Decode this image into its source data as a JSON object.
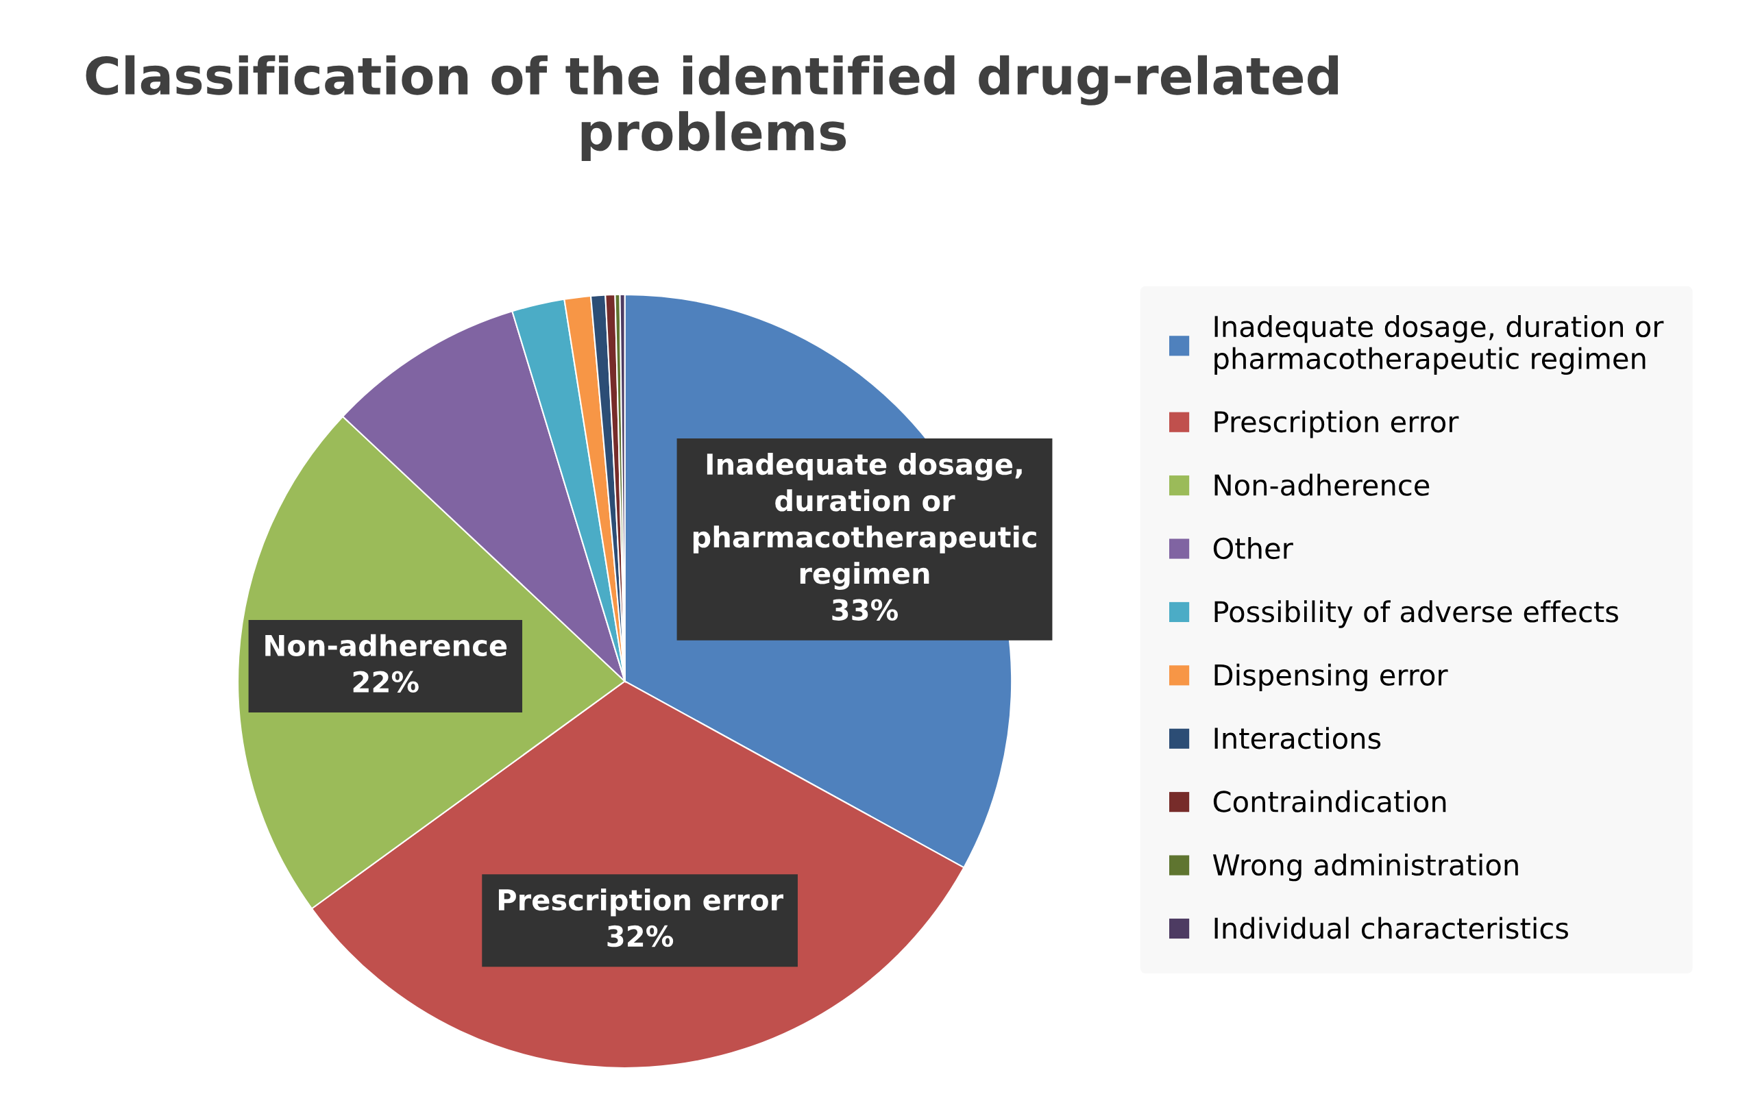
{
  "chart_data": {
    "type": "pie",
    "title": "Classification of the identified drug-related problems",
    "categories": [
      "Inadequate dosage, duration or pharmacotherapeutic regimen",
      "Prescription error",
      "Non-adherence",
      "Other",
      "Possibility of adverse effects",
      "Dispensing error",
      "Interactions",
      "Contraindication",
      "Wrong administration",
      "Individual characteristics"
    ],
    "values": [
      33,
      32,
      22,
      8.3,
      2.2,
      1.1,
      0.6,
      0.4,
      0.2,
      0.2
    ],
    "colors": [
      "#4f81bd",
      "#c0504d",
      "#9bbb59",
      "#8064a2",
      "#4bacc6",
      "#f79646",
      "#2c4d75",
      "#772c2a",
      "#5f7530",
      "#4d3b62"
    ],
    "value_labels": [
      "33%",
      "32%",
      "22%",
      null,
      null,
      null,
      null,
      null,
      null,
      null
    ],
    "legend": "right"
  }
}
